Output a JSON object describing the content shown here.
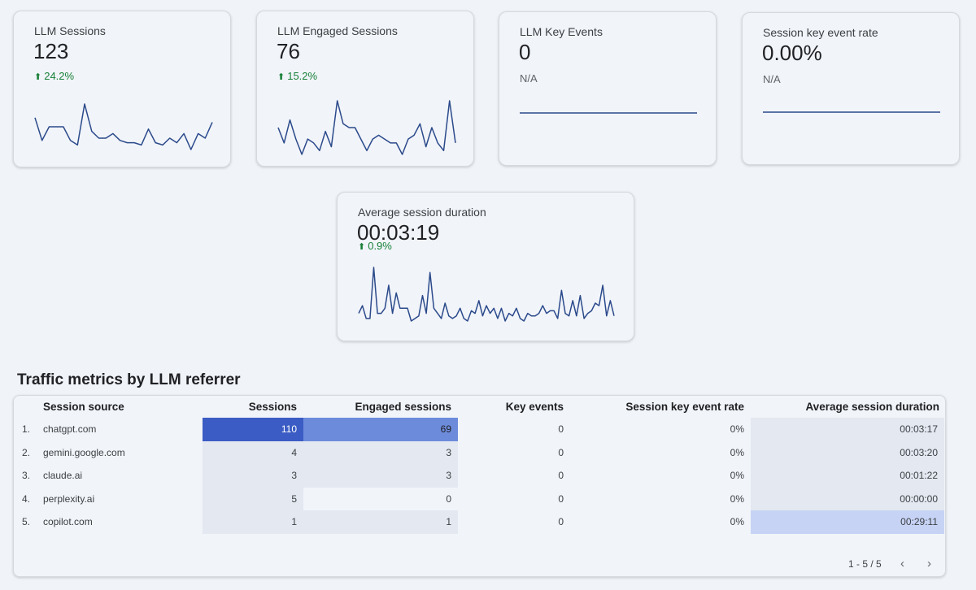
{
  "scorecards": [
    {
      "title": "LLM Sessions",
      "value": "123",
      "delta": "24.2%",
      "trend": [
        18,
        8,
        14,
        14,
        14,
        8,
        6,
        24,
        12,
        9,
        9,
        11,
        8,
        7,
        7,
        6,
        13,
        7,
        6,
        9,
        7,
        11,
        4,
        11,
        9,
        16
      ]
    },
    {
      "title": "LLM Engaged Sessions",
      "value": "76",
      "delta": "15.2%",
      "trend": [
        9,
        5,
        11,
        6,
        2,
        6,
        5,
        3,
        8,
        4,
        16,
        10,
        9,
        9,
        6,
        3,
        6,
        7,
        6,
        5,
        5,
        2,
        6,
        7,
        10,
        4,
        9,
        5,
        3,
        16,
        5
      ]
    },
    {
      "title": "LLM Key Events",
      "value": "0",
      "na": "N/A",
      "trend": [
        0,
        0
      ]
    },
    {
      "title": "Session key event rate",
      "value": "0.00%",
      "na": "N/A",
      "trend": [
        0,
        0
      ]
    },
    {
      "title": "Average session duration",
      "value": "00:03:19",
      "delta": "0.9%",
      "trend": [
        4,
        7,
        2,
        2,
        22,
        4,
        4,
        6,
        15,
        4,
        12,
        6,
        6,
        6,
        1,
        2,
        3,
        11,
        4,
        20,
        6,
        4,
        2,
        8,
        3,
        2,
        3,
        6,
        2,
        1,
        5,
        4,
        9,
        3,
        7,
        4,
        6,
        2,
        6,
        1,
        4,
        3,
        6,
        2,
        1,
        4,
        3,
        3,
        4,
        7,
        4,
        5,
        5,
        2,
        13,
        4,
        3,
        9,
        3,
        11,
        2,
        4,
        5,
        8,
        7,
        15,
        3,
        9,
        3
      ]
    }
  ],
  "table": {
    "title": "Traffic metrics by LLM referrer",
    "headers": [
      "Session source",
      "Sessions",
      "Engaged sessions",
      "Key events",
      "Session key event rate",
      "Average session duration"
    ],
    "rows": [
      {
        "idx": "1.",
        "source": "chatgpt.com",
        "sessions": "110",
        "engaged": "69",
        "key": "0",
        "rate": "0%",
        "duration": "00:03:17"
      },
      {
        "idx": "2.",
        "source": "gemini.google.com",
        "sessions": "4",
        "engaged": "3",
        "key": "0",
        "rate": "0%",
        "duration": "00:03:20"
      },
      {
        "idx": "3.",
        "source": "claude.ai",
        "sessions": "3",
        "engaged": "3",
        "key": "0",
        "rate": "0%",
        "duration": "00:01:22"
      },
      {
        "idx": "4.",
        "source": "perplexity.ai",
        "sessions": "5",
        "engaged": "0",
        "key": "0",
        "rate": "0%",
        "duration": "00:00:00"
      },
      {
        "idx": "5.",
        "source": "copilot.com",
        "sessions": "1",
        "engaged": "1",
        "key": "0",
        "rate": "0%",
        "duration": "00:29:11"
      }
    ],
    "pagination": "1 - 5 / 5",
    "prev_icon": "chevron-left-icon",
    "next_icon": "chevron-right-icon"
  },
  "colors": {
    "line": "#2b4a8b",
    "up": "#188038",
    "heat_dark": "#3b5cc4",
    "heat_mid": "#6d8bdb",
    "heat_light": "#c6d3f5",
    "heat_faint": "#e3e8f1"
  }
}
